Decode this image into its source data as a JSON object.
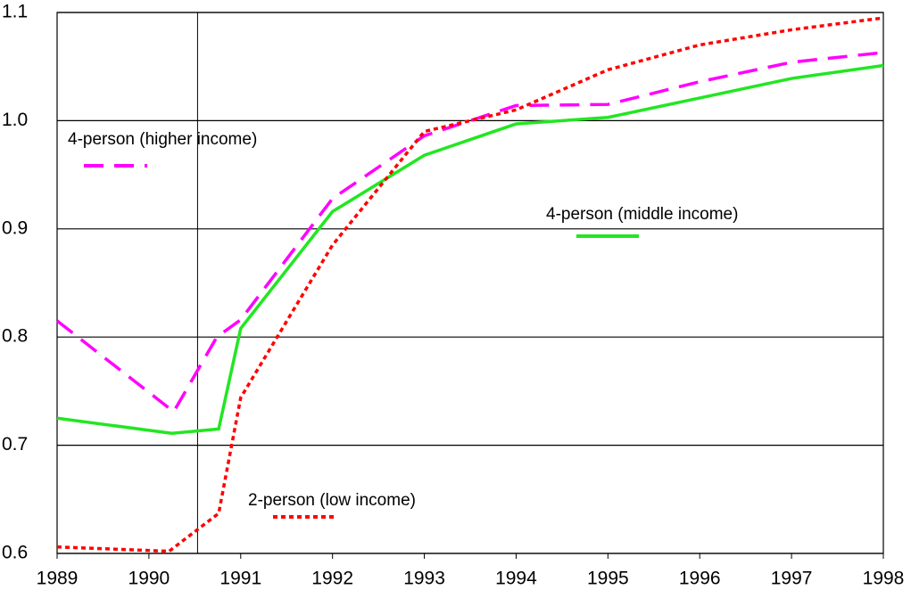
{
  "chart_data": {
    "type": "line",
    "xlim": [
      1989,
      1998
    ],
    "xticks": [
      1989,
      1990,
      1991,
      1992,
      1993,
      1994,
      1995,
      1996,
      1997,
      1998
    ],
    "ylim": [
      0.6,
      1.1
    ],
    "yticks": [
      0.6,
      0.7,
      0.8,
      0.9,
      {
        "value": 1.0,
        "label": "1.0"
      },
      1.1
    ],
    "grid": true,
    "reference_x": 1990.53,
    "series": [
      {
        "name": "4-person (higher income)",
        "color": "#ff00ff",
        "dash": "dashed",
        "x": [
          1989,
          1990.27,
          1990.74,
          1991,
          1992,
          1993,
          1994,
          1995,
          1996,
          1997,
          1998
        ],
        "values": [
          0.815,
          0.731,
          0.8,
          0.816,
          0.928,
          0.986,
          1.014,
          1.015,
          1.036,
          1.054,
          1.063
        ]
      },
      {
        "name": "4-person (middle income)",
        "color": "#22e622",
        "dash": "solid",
        "x": [
          1989,
          1990.25,
          1990.76,
          1991,
          1992,
          1993,
          1994,
          1995,
          1996,
          1997,
          1998
        ],
        "values": [
          0.725,
          0.711,
          0.715,
          0.808,
          0.916,
          0.968,
          0.997,
          1.003,
          1.021,
          1.039,
          1.051
        ]
      },
      {
        "name": "2-person (low income)",
        "color": "#ff0000",
        "dash": "dotted",
        "x": [
          1989,
          1990.22,
          1990.76,
          1991,
          1992,
          1993,
          1994,
          1995,
          1996,
          1997,
          1998
        ],
        "values": [
          0.606,
          0.602,
          0.637,
          0.744,
          0.885,
          0.99,
          1.01,
          1.047,
          1.07,
          1.084,
          1.095
        ]
      }
    ]
  }
}
